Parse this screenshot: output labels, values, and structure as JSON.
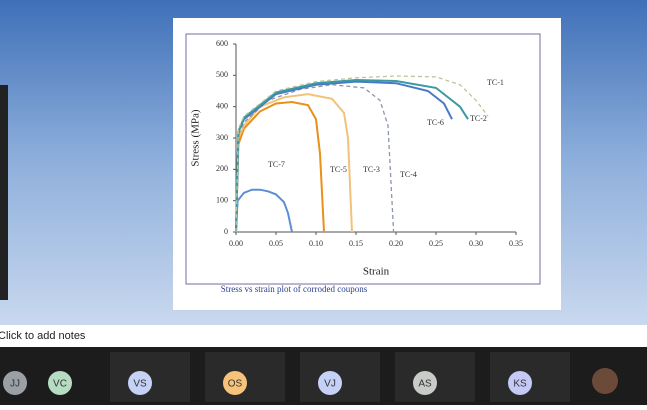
{
  "chart_data": {
    "type": "line",
    "x_label": "Strain",
    "y_label": "Stress (MPa)",
    "caption": "Stress vs strain plot of corroded coupons",
    "xlim": [
      0,
      0.35
    ],
    "xticks": [
      {
        "value": 0,
        "label": "0.00"
      },
      0.05,
      {
        "value": 0.1,
        "label": "0.10"
      },
      0.15,
      {
        "value": 0.2,
        "label": "0.20"
      },
      0.25,
      {
        "value": 0.3,
        "label": "0.30"
      },
      0.35
    ],
    "ylim": [
      0,
      600
    ],
    "yticks": [
      0,
      100,
      200,
      300,
      400,
      500,
      600
    ],
    "series": [
      {
        "name": "TC-7",
        "color": "#5b8fd4",
        "dash": false,
        "x": [
          0,
          0.002,
          0.01,
          0.02,
          0.03,
          0.04,
          0.05,
          0.06,
          0.065,
          0.07
        ],
        "values": [
          0,
          100,
          125,
          135,
          135,
          130,
          120,
          95,
          60,
          0
        ]
      },
      {
        "name": "TC-5",
        "color": "#e8901a",
        "dash": false,
        "x": [
          0,
          0.003,
          0.01,
          0.03,
          0.05,
          0.07,
          0.09,
          0.1,
          0.105,
          0.11
        ],
        "values": [
          0,
          280,
          330,
          385,
          410,
          415,
          405,
          360,
          250,
          0
        ]
      },
      {
        "name": "TC-3",
        "color": "#f2c27a",
        "dash": false,
        "x": [
          0,
          0.003,
          0.01,
          0.03,
          0.06,
          0.09,
          0.12,
          0.135,
          0.14,
          0.145
        ],
        "values": [
          0,
          300,
          340,
          400,
          430,
          440,
          425,
          380,
          300,
          0
        ]
      },
      {
        "name": "TC-4",
        "color": "#8a96a8",
        "dash": true,
        "x": [
          0,
          0.003,
          0.01,
          0.04,
          0.08,
          0.12,
          0.16,
          0.18,
          0.19,
          0.197
        ],
        "values": [
          0,
          310,
          350,
          420,
          455,
          470,
          460,
          420,
          340,
          0
        ]
      },
      {
        "name": "TC-6",
        "color": "#4a78c8",
        "dash": false,
        "x": [
          0,
          0.003,
          0.01,
          0.05,
          0.1,
          0.15,
          0.2,
          0.24,
          0.26,
          0.27
        ],
        "values": [
          0,
          320,
          360,
          440,
          470,
          480,
          475,
          450,
          410,
          360
        ]
      },
      {
        "name": "TC-2",
        "color": "#3a9aa0",
        "dash": false,
        "x": [
          0,
          0.003,
          0.01,
          0.05,
          0.1,
          0.15,
          0.2,
          0.25,
          0.28,
          0.29
        ],
        "values": [
          0,
          320,
          365,
          445,
          475,
          485,
          482,
          460,
          400,
          360
        ]
      },
      {
        "name": "TC-1",
        "color": "#b8c89a",
        "dash": true,
        "x": [
          0,
          0.003,
          0.01,
          0.05,
          0.1,
          0.15,
          0.2,
          0.25,
          0.28,
          0.3,
          0.315
        ],
        "values": [
          0,
          330,
          370,
          450,
          480,
          492,
          498,
          495,
          470,
          420,
          370
        ]
      }
    ]
  },
  "notes": {
    "placeholder": "Click to add notes"
  },
  "participants": [
    {
      "initials": "JJ",
      "color": "#9aa0a6"
    },
    {
      "initials": "VC",
      "color": "#b7dcc4"
    },
    {
      "initials": "VS",
      "color": "#c5d1f5"
    },
    {
      "initials": "OS",
      "color": "#f7c27a"
    },
    {
      "initials": "VJ",
      "color": "#c5d1f5"
    },
    {
      "initials": "AS",
      "color": "#c9cbc9"
    },
    {
      "initials": "KS",
      "color": "#c5c9f5"
    }
  ]
}
